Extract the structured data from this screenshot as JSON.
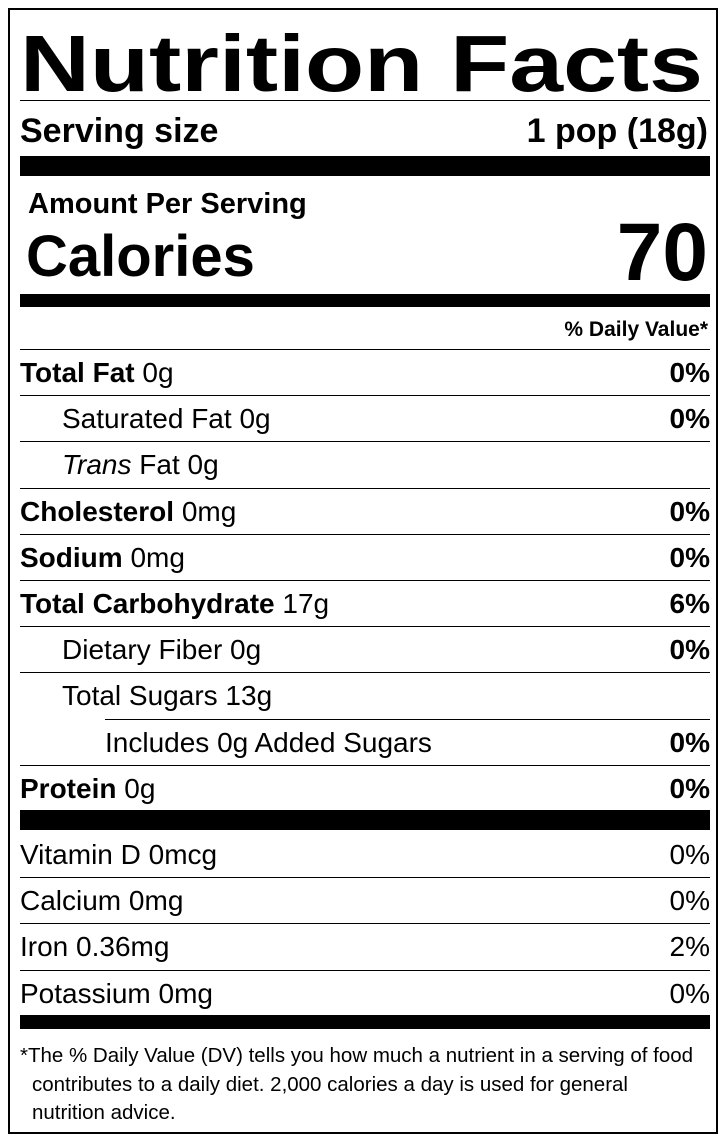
{
  "title": "Nutrition Facts",
  "serving": {
    "label": "Serving size",
    "value": "1 pop (18g)"
  },
  "calories": {
    "amount_per_serving": "Amount Per Serving",
    "label": "Calories",
    "value": "70"
  },
  "daily_value_header": "% Daily Value*",
  "nutrients": [
    {
      "name": "Total Fat",
      "amount": "0g",
      "dv": "0%",
      "sub": [
        {
          "name": "Saturated Fat",
          "amount": "0g",
          "dv": "0%"
        },
        {
          "name_italic": "Trans",
          "name": "Fat",
          "amount": "0g"
        }
      ]
    },
    {
      "name": "Cholesterol",
      "amount": "0mg",
      "dv": "0%"
    },
    {
      "name": "Sodium",
      "amount": "0mg",
      "dv": "0%"
    },
    {
      "name": "Total Carbohydrate",
      "amount": "17g",
      "dv": "6%",
      "sub": [
        {
          "name": "Dietary Fiber",
          "amount": "0g",
          "dv": "0%"
        },
        {
          "name": "Total Sugars",
          "amount": "13g",
          "sub": [
            {
              "name": "Includes 0g Added Sugars",
              "dv": "0%"
            }
          ]
        }
      ]
    },
    {
      "name": "Protein",
      "amount": "0g",
      "dv": "0%"
    }
  ],
  "vitamins": [
    {
      "name": "Vitamin D",
      "amount": "0mcg",
      "dv": "0%"
    },
    {
      "name": "Calcium",
      "amount": "0mg",
      "dv": "0%"
    },
    {
      "name": "Iron",
      "amount": "0.36mg",
      "dv": "2%"
    },
    {
      "name": "Potassium",
      "amount": "0mg",
      "dv": "0%"
    }
  ],
  "footnote": "*The % Daily Value (DV) tells you how much a nutrient in a serving of food contributes to a daily diet. 2,000 calories a day is used for general nutrition advice."
}
